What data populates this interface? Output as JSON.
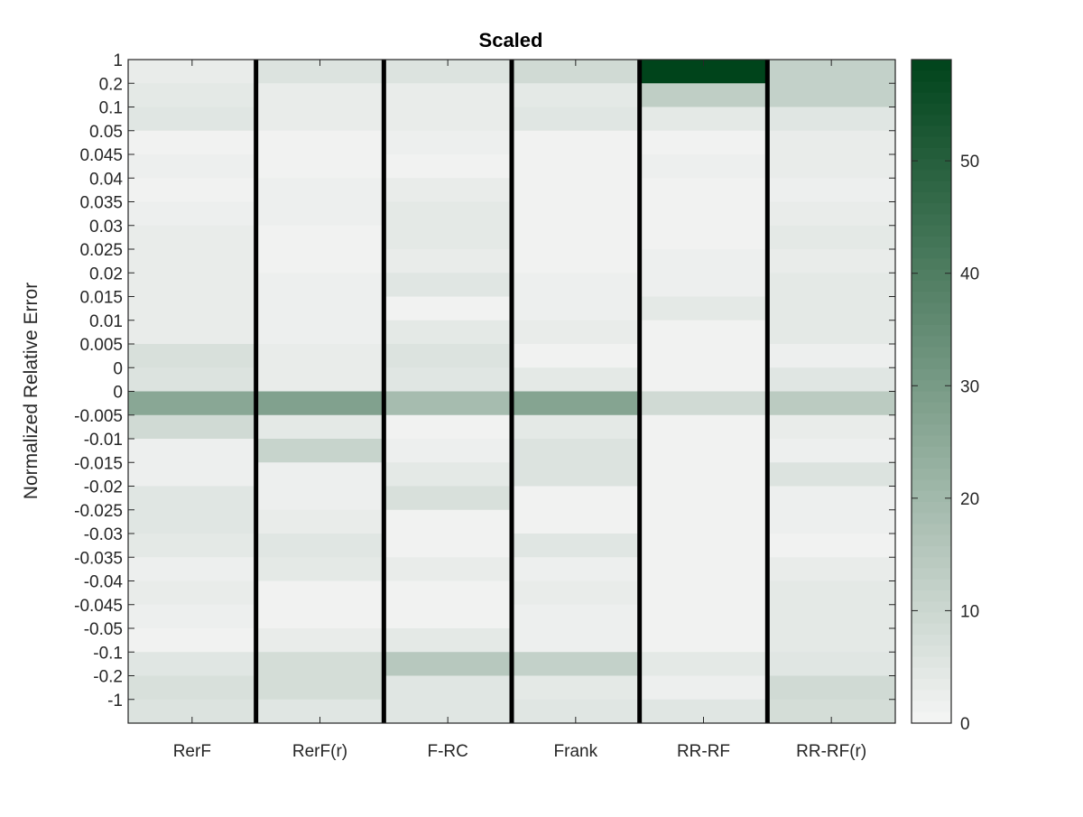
{
  "chart_data": {
    "type": "heatmap",
    "title": "Scaled",
    "xlabel": "",
    "ylabel": "Normalized Relative Error",
    "columns": [
      "RerF",
      "RerF(r)",
      "F-RC",
      "Frank",
      "RR-RF",
      "RR-RF(r)"
    ],
    "rows": [
      "1",
      "0.2",
      "0.1",
      "0.05",
      "0.045",
      "0.04",
      "0.035",
      "0.03",
      "0.025",
      "0.02",
      "0.015",
      "0.01",
      "0.005",
      "0",
      "0",
      "-0.005",
      "-0.01",
      "-0.015",
      "-0.02",
      "-0.025",
      "-0.03",
      "-0.035",
      "-0.04",
      "-0.045",
      "-0.05",
      "-0.1",
      "-0.2",
      "-1"
    ],
    "values": [
      [
        3,
        6,
        6,
        9,
        59,
        12
      ],
      [
        4,
        3,
        3,
        4,
        13,
        12
      ],
      [
        5,
        3,
        3,
        5,
        4,
        5
      ],
      [
        1,
        1,
        2,
        1,
        1,
        3
      ],
      [
        2,
        1,
        1,
        1,
        2,
        3
      ],
      [
        1,
        2,
        3,
        1,
        1,
        2
      ],
      [
        2,
        2,
        4,
        1,
        1,
        3
      ],
      [
        3,
        1,
        4,
        1,
        1,
        4
      ],
      [
        3,
        1,
        3,
        1,
        2,
        3
      ],
      [
        3,
        2,
        5,
        2,
        2,
        4
      ],
      [
        3,
        2,
        1,
        2,
        4,
        4
      ],
      [
        3,
        2,
        4,
        3,
        1,
        4
      ],
      [
        7,
        3,
        6,
        1,
        1,
        2
      ],
      [
        6,
        3,
        5,
        4,
        1,
        5
      ],
      [
        26,
        28,
        19,
        27,
        9,
        14
      ],
      [
        9,
        4,
        1,
        4,
        1,
        3
      ],
      [
        2,
        11,
        2,
        6,
        1,
        2
      ],
      [
        2,
        2,
        4,
        6,
        1,
        6
      ],
      [
        5,
        2,
        7,
        1,
        1,
        2
      ],
      [
        5,
        3,
        1,
        1,
        1,
        2
      ],
      [
        4,
        5,
        1,
        5,
        1,
        1
      ],
      [
        2,
        4,
        3,
        2,
        1,
        3
      ],
      [
        3,
        1,
        1,
        3,
        1,
        4
      ],
      [
        2,
        1,
        1,
        2,
        1,
        4
      ],
      [
        1,
        3,
        4,
        2,
        1,
        4
      ],
      [
        5,
        8,
        15,
        12,
        4,
        5
      ],
      [
        7,
        8,
        5,
        4,
        2,
        9
      ],
      [
        6,
        5,
        5,
        5,
        5,
        8
      ]
    ],
    "colorbar": {
      "range": [
        0,
        59
      ],
      "ticks": [
        "0",
        "10",
        "20",
        "30",
        "40",
        "50"
      ],
      "tick_values": [
        0,
        10,
        20,
        30,
        40,
        50
      ],
      "color_low": "#f5f5f5",
      "color_high": "#00441b"
    },
    "column_separator_color": "#000000",
    "grid": false,
    "legend": "colorbar-right"
  }
}
